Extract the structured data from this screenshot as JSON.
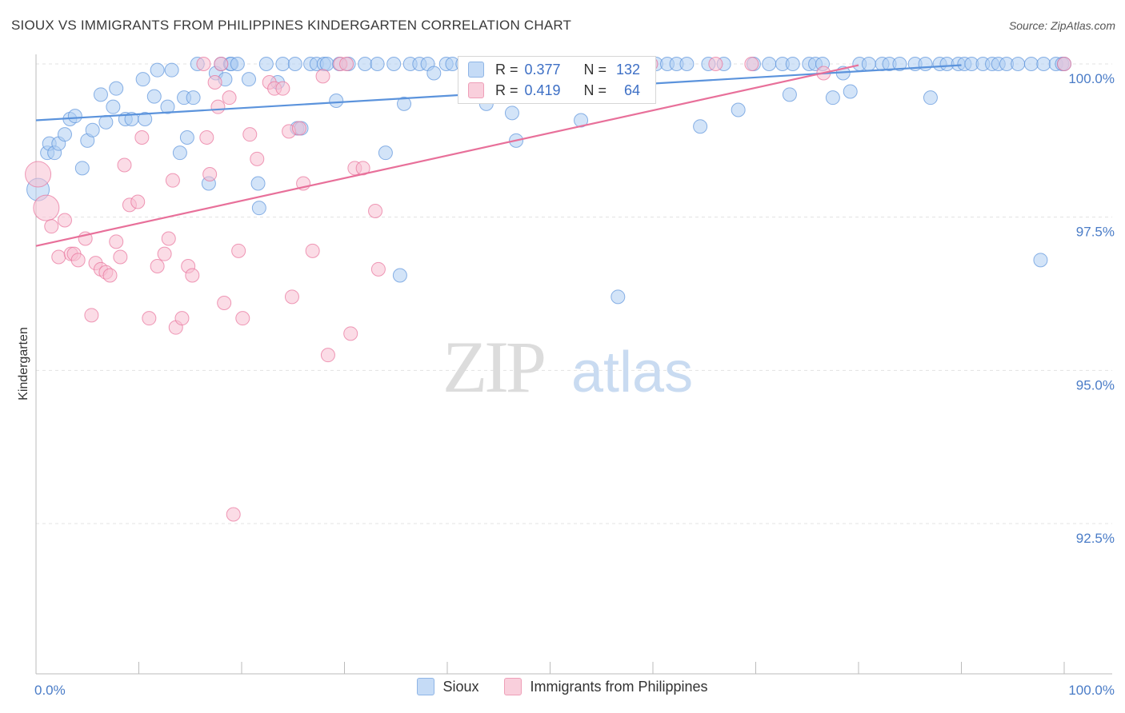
{
  "header": {
    "title": "SIOUX VS IMMIGRANTS FROM PHILIPPINES KINDERGARTEN CORRELATION CHART",
    "source": "Source: ZipAtlas.com"
  },
  "watermark": {
    "zip": "ZIP",
    "atlas": "atlas"
  },
  "stats": {
    "r_label": "R =",
    "n_label": "N =",
    "rows": [
      {
        "r": "0.377",
        "n": "132",
        "color": "#9fc3ee"
      },
      {
        "r": "0.419",
        "n": "64",
        "color": "#f6b6c9"
      }
    ]
  },
  "legend": {
    "items": [
      {
        "label": "Sioux",
        "color": "#aecdf3"
      },
      {
        "label": "Immigrants from Philippines",
        "color": "#f7c0d1"
      }
    ]
  },
  "chart_data": {
    "type": "scatter",
    "title": "SIOUX VS IMMIGRANTS FROM PHILIPPINES KINDERGARTEN CORRELATION CHART",
    "xlabel": "",
    "ylabel": "Kindergarten",
    "xlim": [
      0,
      100
    ],
    "ylim": [
      90.0,
      100.35
    ],
    "x_tick_labels": [
      "0.0%",
      "100.0%"
    ],
    "y_ticks": [
      100.0,
      97.5,
      95.0,
      92.5
    ],
    "y_tick_labels": [
      "100.0%",
      "97.5%",
      "95.0%",
      "92.5%"
    ],
    "grid": true,
    "legend_position": "bottom-center",
    "series": [
      {
        "name": "Sioux",
        "color": "#5b93dc",
        "fill": "#aecdf3",
        "trend": {
          "x": [
            0,
            90
          ],
          "y": [
            99.08,
            99.98
          ]
        },
        "points": [
          [
            0.2,
            97.95
          ],
          [
            1.1,
            98.55
          ],
          [
            1.3,
            98.7
          ],
          [
            1.8,
            98.55
          ],
          [
            2.2,
            98.7
          ],
          [
            2.8,
            98.85
          ],
          [
            3.3,
            99.1
          ],
          [
            3.8,
            99.15
          ],
          [
            4.5,
            98.3
          ],
          [
            5.0,
            98.75
          ],
          [
            5.5,
            98.92
          ],
          [
            6.3,
            99.5
          ],
          [
            6.8,
            99.05
          ],
          [
            7.5,
            99.3
          ],
          [
            7.8,
            99.6
          ],
          [
            8.7,
            99.1
          ],
          [
            9.3,
            99.1
          ],
          [
            10.4,
            99.75
          ],
          [
            10.6,
            99.1
          ],
          [
            11.5,
            99.47
          ],
          [
            11.8,
            99.9
          ],
          [
            12.8,
            99.3
          ],
          [
            13.2,
            99.9
          ],
          [
            14.0,
            98.55
          ],
          [
            14.4,
            99.45
          ],
          [
            14.7,
            98.8
          ],
          [
            15.3,
            99.45
          ],
          [
            15.7,
            100.0
          ],
          [
            16.8,
            98.05
          ],
          [
            17.5,
            99.85
          ],
          [
            18.0,
            100.0
          ],
          [
            18.4,
            99.75
          ],
          [
            18.9,
            100.0
          ],
          [
            19.0,
            100.0
          ],
          [
            19.6,
            100.0
          ],
          [
            20.7,
            99.75
          ],
          [
            21.6,
            98.05
          ],
          [
            21.7,
            97.65
          ],
          [
            22.4,
            100.0
          ],
          [
            23.5,
            99.7
          ],
          [
            24.0,
            100.0
          ],
          [
            25.2,
            100.0
          ],
          [
            25.4,
            98.95
          ],
          [
            25.8,
            98.95
          ],
          [
            26.7,
            100.0
          ],
          [
            27.3,
            100.0
          ],
          [
            28.0,
            100.0
          ],
          [
            28.3,
            100.0
          ],
          [
            29.2,
            99.4
          ],
          [
            29.5,
            100.0
          ],
          [
            30.4,
            100.0
          ],
          [
            32.0,
            100.0
          ],
          [
            33.2,
            100.0
          ],
          [
            34.0,
            98.55
          ],
          [
            34.8,
            100.0
          ],
          [
            35.4,
            96.55
          ],
          [
            35.8,
            99.35
          ],
          [
            36.4,
            100.0
          ],
          [
            37.3,
            100.0
          ],
          [
            38.1,
            100.0
          ],
          [
            38.7,
            99.85
          ],
          [
            39.9,
            100.0
          ],
          [
            40.5,
            100.0
          ],
          [
            41.5,
            100.0
          ],
          [
            41.8,
            100.0
          ],
          [
            42.3,
            100.0
          ],
          [
            43.8,
            99.35
          ],
          [
            44.0,
            100.0
          ],
          [
            46.3,
            99.2
          ],
          [
            46.7,
            98.75
          ],
          [
            47.3,
            100.0
          ],
          [
            47.8,
            100.0
          ],
          [
            48.8,
            100.0
          ],
          [
            50.4,
            100.0
          ],
          [
            51.3,
            100.0
          ],
          [
            52.2,
            100.0
          ],
          [
            53.0,
            99.08
          ],
          [
            53.7,
            100.0
          ],
          [
            55.0,
            100.0
          ],
          [
            56.2,
            100.0
          ],
          [
            56.6,
            96.2
          ],
          [
            57.5,
            100.0
          ],
          [
            58.3,
            100.0
          ],
          [
            59.5,
            100.0
          ],
          [
            60.3,
            100.0
          ],
          [
            61.4,
            100.0
          ],
          [
            62.3,
            100.0
          ],
          [
            63.3,
            100.0
          ],
          [
            64.6,
            98.98
          ],
          [
            65.4,
            100.0
          ],
          [
            66.9,
            100.0
          ],
          [
            68.3,
            99.25
          ],
          [
            69.8,
            100.0
          ],
          [
            71.3,
            100.0
          ],
          [
            72.6,
            100.0
          ],
          [
            73.3,
            99.5
          ],
          [
            73.6,
            100.0
          ],
          [
            75.2,
            100.0
          ],
          [
            75.8,
            100.0
          ],
          [
            76.5,
            100.0
          ],
          [
            77.5,
            99.45
          ],
          [
            78.5,
            99.85
          ],
          [
            79.2,
            99.55
          ],
          [
            80.1,
            100.0
          ],
          [
            81.0,
            100.0
          ],
          [
            82.3,
            100.0
          ],
          [
            83.0,
            100.0
          ],
          [
            84.0,
            100.0
          ],
          [
            85.5,
            100.0
          ],
          [
            86.5,
            100.0
          ],
          [
            87.0,
            99.45
          ],
          [
            87.9,
            100.0
          ],
          [
            88.6,
            100.0
          ],
          [
            89.7,
            100.0
          ],
          [
            90.3,
            100.0
          ],
          [
            91.0,
            100.0
          ],
          [
            92.1,
            100.0
          ],
          [
            93.0,
            100.0
          ],
          [
            93.6,
            100.0
          ],
          [
            94.4,
            100.0
          ],
          [
            95.5,
            100.0
          ],
          [
            96.8,
            100.0
          ],
          [
            97.7,
            96.8
          ],
          [
            98.0,
            100.0
          ],
          [
            99.2,
            100.0
          ],
          [
            99.8,
            100.0
          ],
          [
            100.0,
            100.0
          ]
        ]
      },
      {
        "name": "Immigrants from Philippines",
        "color": "#e8709a",
        "fill": "#f7c0d1",
        "trend": {
          "x": [
            0,
            80
          ],
          "y": [
            97.03,
            99.98
          ]
        },
        "points": [
          [
            0.2,
            98.2
          ],
          [
            1.0,
            97.65
          ],
          [
            1.5,
            97.35
          ],
          [
            2.2,
            96.85
          ],
          [
            2.8,
            97.45
          ],
          [
            3.4,
            96.9
          ],
          [
            3.7,
            96.9
          ],
          [
            4.1,
            96.8
          ],
          [
            4.8,
            97.15
          ],
          [
            5.4,
            95.9
          ],
          [
            5.8,
            96.75
          ],
          [
            6.3,
            96.65
          ],
          [
            6.8,
            96.6
          ],
          [
            7.2,
            96.55
          ],
          [
            7.8,
            97.1
          ],
          [
            8.2,
            96.85
          ],
          [
            8.6,
            98.35
          ],
          [
            9.1,
            97.7
          ],
          [
            9.9,
            97.75
          ],
          [
            10.3,
            98.8
          ],
          [
            11.0,
            95.85
          ],
          [
            11.8,
            96.7
          ],
          [
            12.5,
            96.9
          ],
          [
            12.9,
            97.15
          ],
          [
            13.3,
            98.1
          ],
          [
            13.6,
            95.7
          ],
          [
            14.2,
            95.85
          ],
          [
            14.8,
            96.7
          ],
          [
            15.2,
            96.55
          ],
          [
            16.3,
            100.0
          ],
          [
            16.6,
            98.8
          ],
          [
            16.9,
            98.2
          ],
          [
            17.4,
            99.7
          ],
          [
            17.7,
            99.3
          ],
          [
            18.0,
            100.0
          ],
          [
            18.3,
            96.1
          ],
          [
            18.8,
            99.45
          ],
          [
            19.2,
            92.65
          ],
          [
            19.7,
            96.95
          ],
          [
            20.1,
            95.85
          ],
          [
            20.8,
            98.85
          ],
          [
            21.5,
            98.45
          ],
          [
            22.7,
            99.7
          ],
          [
            23.2,
            99.6
          ],
          [
            24.0,
            99.6
          ],
          [
            24.6,
            98.9
          ],
          [
            24.9,
            96.2
          ],
          [
            25.6,
            98.95
          ],
          [
            26.0,
            98.05
          ],
          [
            26.9,
            96.95
          ],
          [
            27.9,
            99.8
          ],
          [
            28.4,
            95.25
          ],
          [
            29.6,
            100.0
          ],
          [
            30.2,
            100.0
          ],
          [
            30.6,
            95.6
          ],
          [
            31.0,
            98.3
          ],
          [
            31.8,
            98.3
          ],
          [
            33.0,
            97.6
          ],
          [
            33.3,
            96.65
          ],
          [
            59.8,
            100.0
          ],
          [
            66.1,
            100.0
          ],
          [
            69.6,
            100.0
          ],
          [
            76.6,
            99.85
          ],
          [
            100.0,
            100.0
          ]
        ]
      }
    ]
  }
}
